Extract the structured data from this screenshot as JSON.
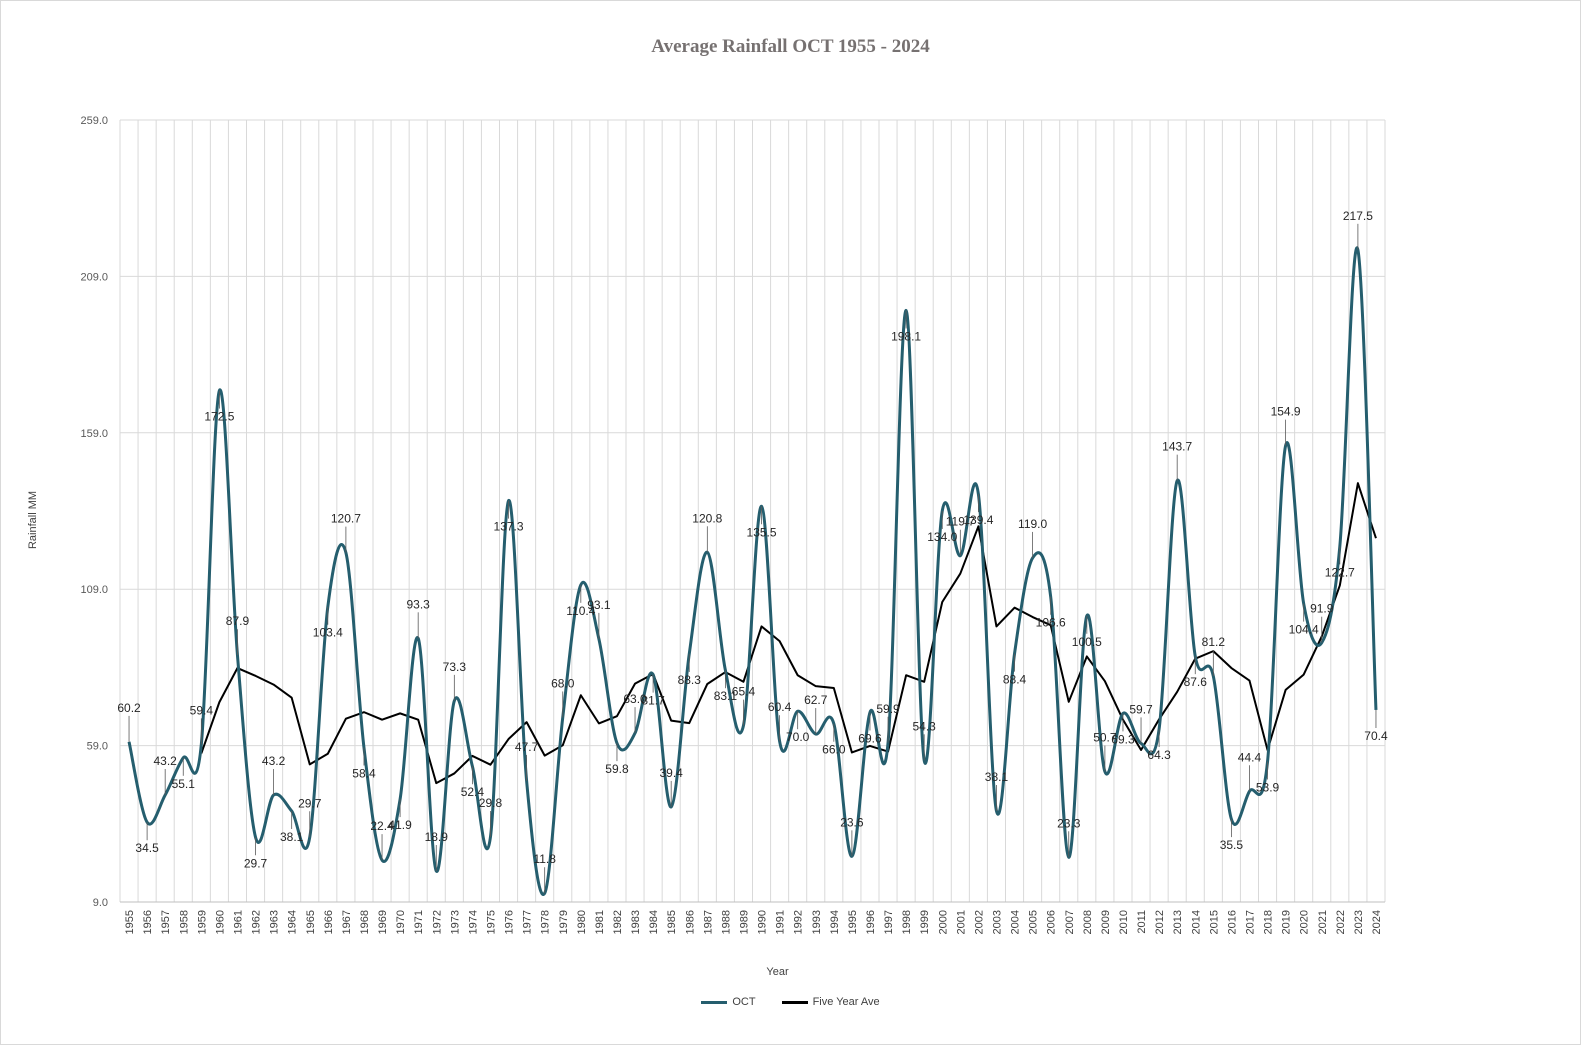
{
  "chart_data": {
    "type": "line",
    "title": "Average Rainfall OCT 1955 - 2024",
    "xlabel": "Year",
    "ylabel": "Rainfall MM",
    "ylim": [
      9.0,
      259.0
    ],
    "y_ticks": [
      "9.0",
      "59.0",
      "109.0",
      "159.0",
      "209.0",
      "259.0"
    ],
    "grid": true,
    "legend_position": "bottom",
    "categories": [
      "1955",
      "1956",
      "1957",
      "1958",
      "1959",
      "1960",
      "1961",
      "1962",
      "1963",
      "1964",
      "1965",
      "1966",
      "1967",
      "1968",
      "1969",
      "1970",
      "1971",
      "1972",
      "1973",
      "1974",
      "1975",
      "1976",
      "1977",
      "1978",
      "1979",
      "1980",
      "1981",
      "1982",
      "1983",
      "1984",
      "1985",
      "1986",
      "1987",
      "1988",
      "1989",
      "1990",
      "1991",
      "1992",
      "1993",
      "1994",
      "1995",
      "1996",
      "1997",
      "1998",
      "1999",
      "2000",
      "2001",
      "2002",
      "2003",
      "2004",
      "2005",
      "2006",
      "2007",
      "2008",
      "2009",
      "2010",
      "2011",
      "2012",
      "2013",
      "2014",
      "2015",
      "2016",
      "2017",
      "2018",
      "2019",
      "2020",
      "2021",
      "2022",
      "2023",
      "2024"
    ],
    "series": [
      {
        "name": "OCT",
        "color": "#255e6e",
        "smooth": true,
        "values": [
          60.2,
          34.5,
          43.2,
          55.1,
          59.4,
          172.5,
          87.9,
          29.7,
          43.2,
          38.1,
          29.7,
          103.4,
          120.7,
          58.4,
          22.4,
          41.9,
          93.3,
          18.9,
          73.3,
          52.4,
          29.8,
          137.3,
          47.7,
          11.8,
          68.0,
          110.4,
          93.1,
          59.8,
          63.0,
          81.7,
          39.4,
          88.3,
          120.8,
          83.1,
          65.4,
          135.5,
          60.4,
          70.0,
          62.7,
          66.0,
          23.6,
          69.6,
          59.9,
          198.1,
          54.3,
          134.0,
          119.7,
          139.4,
          38.1,
          88.4,
          119.0,
          106.6,
          23.3,
          100.5,
          50.7,
          69.3,
          59.7,
          64.3,
          143.7,
          87.6,
          81.2,
          35.5,
          44.4,
          53.9,
          154.9,
          104.4,
          91.9,
          122.7,
          217.5,
          70.4
        ],
        "labels": [
          "60.2",
          "34.5",
          "43.2",
          "55.1",
          "59.4",
          "172.5",
          "87.9",
          "29.7",
          "43.2",
          "38.1",
          "29.7",
          "103.4",
          "120.7",
          "58.4",
          "22.4",
          "41.9",
          "93.3",
          "18.9",
          "73.3",
          "52.4",
          "29.8",
          "137.3",
          "47.7",
          "11.8",
          "68.0",
          "110.4",
          "93.1",
          "59.8",
          "63.0",
          "81.7",
          "39.4",
          "88.3",
          "120.8",
          "83.1",
          "65.4",
          "135.5",
          "60.4",
          "70.0",
          "62.7",
          "66.0",
          "23.6",
          "69.6",
          "59.9",
          "198.1",
          "54.3",
          "134.0",
          "119.7",
          "139.4",
          "38.1",
          "88.4",
          "119.0",
          "106.6",
          "23.3",
          "100.5",
          "50.7",
          "69.3",
          "59.7",
          "64.3",
          "143.7",
          "87.6",
          "81.2",
          "35.5",
          "44.4",
          "53.9",
          "154.9",
          "104.4",
          "91.9",
          "122.7",
          "217.5",
          "70.4"
        ]
      },
      {
        "name": "Five Year Ave",
        "color": "#000000",
        "smooth": false,
        "values": [
          null,
          null,
          null,
          null,
          56.5,
          72.9,
          83.8,
          81.3,
          78.5,
          74.3,
          53.0,
          56.4,
          67.6,
          69.7,
          67.3,
          69.3,
          67.3,
          47.0,
          50.1,
          55.7,
          52.9,
          61.1,
          66.5,
          55.8,
          59.1,
          75.1,
          66.1,
          68.4,
          78.8,
          81.9,
          67.0,
          66.2,
          78.7,
          82.5,
          79.4,
          97.1,
          92.4,
          81.5,
          78.0,
          77.4,
          56.8,
          58.9,
          57.1,
          81.5,
          79.4,
          104.9,
          114.0,
          129.1,
          97.1,
          103.1,
          100.1,
          97.5,
          73.0,
          87.5,
          79.6,
          67.3,
          57.6,
          67.4,
          76.2,
          86.8,
          89.2,
          83.8,
          79.8,
          57.6,
          76.8,
          81.7,
          93.9,
          110.2,
          142.9,
          125.3
        ]
      }
    ]
  }
}
